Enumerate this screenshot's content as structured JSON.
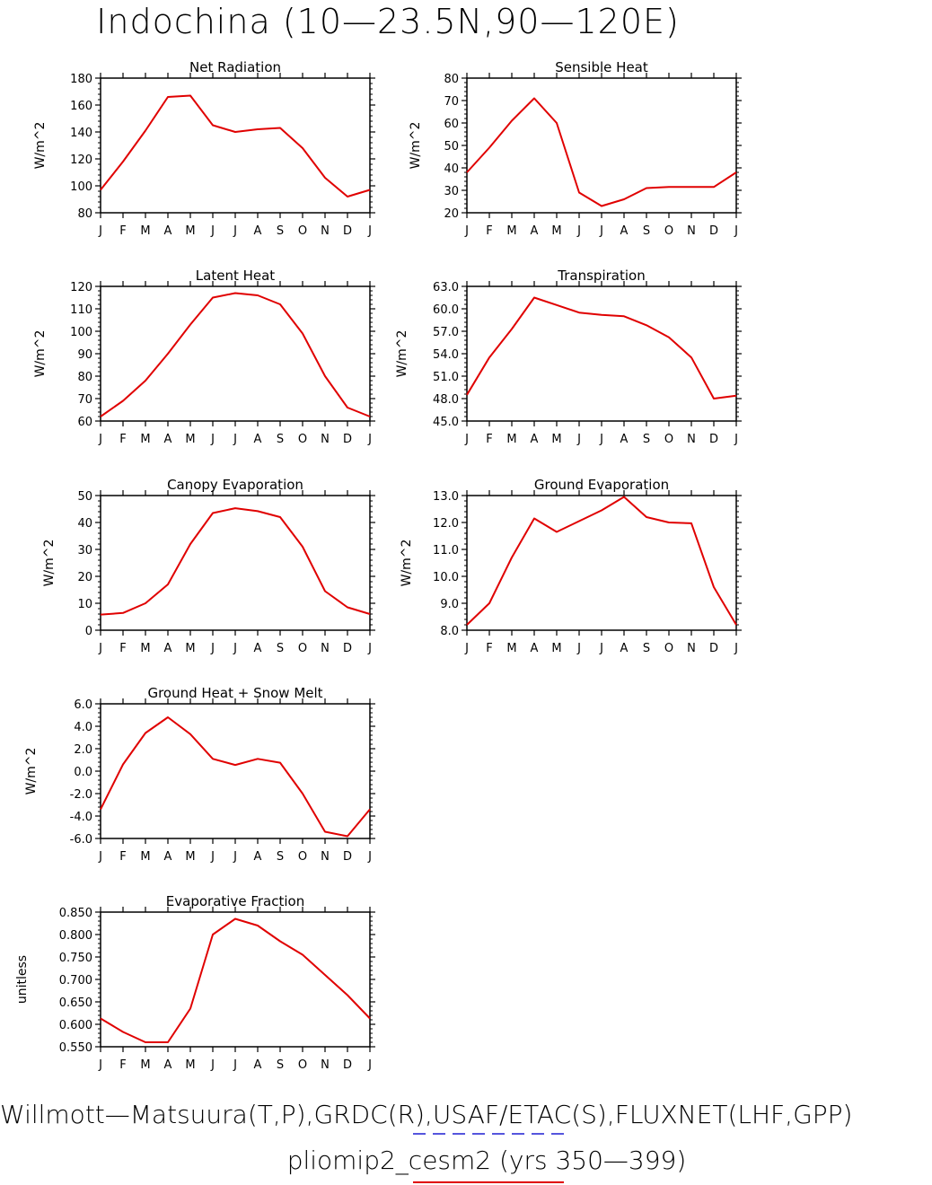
{
  "figure": {
    "title": "Indochina (10—23.5N,90—120E)",
    "footer_line1": "Willmott—Matsuura(T,P),GRDC(R),USAF/ETAC(S),FLUXNET(LHF,GPP)",
    "footer_line2": "pliomip2_cesm2 (yrs 350—399)",
    "footer_line1_underline_color": "#5555dd",
    "footer_line2_underline_color": "#e00000"
  },
  "chart_data": [
    {
      "type": "line",
      "title": "Net Radiation",
      "ylabel": "W/m^2",
      "categories": [
        "J",
        "F",
        "M",
        "A",
        "M",
        "J",
        "J",
        "A",
        "S",
        "O",
        "N",
        "D",
        "J"
      ],
      "ylim": [
        80,
        180
      ],
      "yticks": [
        "80",
        "100",
        "120",
        "140",
        "160",
        "180"
      ],
      "series": [
        {
          "color": "#e00000",
          "values": [
            97,
            118,
            141,
            166,
            167,
            145,
            140,
            142,
            143,
            128,
            106,
            92,
            97
          ]
        }
      ]
    },
    {
      "type": "line",
      "title": "Sensible Heat",
      "ylabel": "W/m^2",
      "categories": [
        "J",
        "F",
        "M",
        "A",
        "M",
        "J",
        "J",
        "A",
        "S",
        "O",
        "N",
        "D",
        "J"
      ],
      "ylim": [
        20,
        80
      ],
      "yticks": [
        "20",
        "30",
        "40",
        "50",
        "60",
        "70",
        "80"
      ],
      "series": [
        {
          "color": "#e00000",
          "values": [
            38,
            49,
            61,
            71,
            60,
            29,
            23,
            26,
            31,
            31.5,
            31.5,
            31.5,
            38
          ]
        }
      ]
    },
    {
      "type": "line",
      "title": "Latent Heat",
      "ylabel": "W/m^2",
      "categories": [
        "J",
        "F",
        "M",
        "A",
        "M",
        "J",
        "J",
        "A",
        "S",
        "O",
        "N",
        "D",
        "J"
      ],
      "ylim": [
        60,
        120
      ],
      "yticks": [
        "60",
        "70",
        "80",
        "90",
        "100",
        "110",
        "120"
      ],
      "series": [
        {
          "color": "#e00000",
          "values": [
            62,
            69,
            78,
            90,
            103,
            115,
            117,
            116,
            112,
            99,
            80,
            66,
            62
          ]
        }
      ]
    },
    {
      "type": "line",
      "title": "Transpiration",
      "ylabel": "W/m^2",
      "categories": [
        "J",
        "F",
        "M",
        "A",
        "M",
        "J",
        "J",
        "A",
        "S",
        "O",
        "N",
        "D",
        "J"
      ],
      "ylim": [
        45,
        63
      ],
      "yticks": [
        "45.0",
        "48.0",
        "51.0",
        "54.0",
        "57.0",
        "60.0",
        "63.0"
      ],
      "series": [
        {
          "color": "#e00000",
          "values": [
            48.5,
            53.5,
            57.3,
            61.5,
            60.5,
            59.5,
            59.2,
            59.0,
            57.8,
            56.2,
            53.5,
            48.0,
            48.4
          ]
        }
      ]
    },
    {
      "type": "line",
      "title": "Canopy Evaporation",
      "ylabel": "W/m^2",
      "categories": [
        "J",
        "F",
        "M",
        "A",
        "M",
        "J",
        "J",
        "A",
        "S",
        "O",
        "N",
        "D",
        "J"
      ],
      "ylim": [
        0,
        50
      ],
      "yticks": [
        "0",
        "10",
        "20",
        "30",
        "40",
        "50"
      ],
      "series": [
        {
          "color": "#e00000",
          "values": [
            5.8,
            6.4,
            10,
            17,
            32,
            43.5,
            45.3,
            44.2,
            42,
            31,
            14.5,
            8.5,
            6
          ]
        }
      ]
    },
    {
      "type": "line",
      "title": "Ground Evaporation",
      "ylabel": "W/m^2",
      "categories": [
        "J",
        "F",
        "M",
        "A",
        "M",
        "J",
        "J",
        "A",
        "S",
        "O",
        "N",
        "D",
        "J"
      ],
      "ylim": [
        8,
        13
      ],
      "yticks": [
        "8.0",
        "9.0",
        "10.0",
        "11.0",
        "12.0",
        "13.0"
      ],
      "series": [
        {
          "color": "#e00000",
          "values": [
            8.2,
            9.0,
            10.7,
            12.15,
            11.65,
            12.05,
            12.45,
            12.95,
            12.2,
            12.0,
            11.97,
            9.6,
            8.2
          ]
        }
      ]
    },
    {
      "type": "line",
      "title": "Ground Heat + Snow Melt",
      "ylabel": "W/m^2",
      "categories": [
        "J",
        "F",
        "M",
        "A",
        "M",
        "J",
        "J",
        "A",
        "S",
        "O",
        "N",
        "D",
        "J"
      ],
      "ylim": [
        -6,
        6
      ],
      "yticks": [
        "-6.0",
        "-4.0",
        "-2.0",
        "0.0",
        "2.0",
        "4.0",
        "6.0"
      ],
      "series": [
        {
          "color": "#e00000",
          "values": [
            -3.4,
            0.6,
            3.4,
            4.8,
            3.3,
            1.1,
            0.55,
            1.1,
            0.75,
            -2.0,
            -5.4,
            -5.8,
            -3.4
          ]
        }
      ]
    },
    {
      "type": "line",
      "title": "Evaporative Fraction",
      "ylabel": "unitless",
      "categories": [
        "J",
        "F",
        "M",
        "A",
        "M",
        "J",
        "J",
        "A",
        "S",
        "O",
        "N",
        "D",
        "J"
      ],
      "ylim": [
        0.55,
        0.85
      ],
      "yticks": [
        "0.550",
        "0.600",
        "0.650",
        "0.700",
        "0.750",
        "0.800",
        "0.850"
      ],
      "series": [
        {
          "color": "#e00000",
          "values": [
            0.613,
            0.583,
            0.56,
            0.56,
            0.635,
            0.8,
            0.835,
            0.82,
            0.785,
            0.755,
            0.71,
            0.665,
            0.613
          ]
        }
      ]
    }
  ]
}
